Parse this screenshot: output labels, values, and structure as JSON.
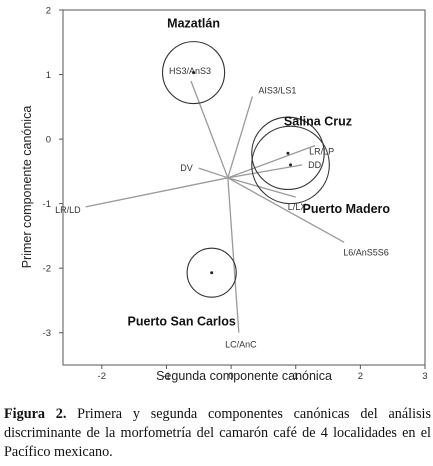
{
  "chart_data": {
    "type": "scatter",
    "title": "",
    "xlabel": "Segunda componente canónica",
    "ylabel": "Primer componente canónica",
    "xlim": [
      -2.6,
      3.0
    ],
    "ylim": [
      -3.5,
      2.0
    ],
    "x_ticks": [
      -2,
      -1,
      0,
      1,
      2,
      3
    ],
    "y_ticks": [
      -3,
      -2,
      -1,
      0,
      1,
      2
    ],
    "grid": false,
    "origin": [
      -0.05,
      -0.6
    ],
    "groups": [
      {
        "name": "Mazatlán",
        "center": [
          -0.58,
          1.03
        ],
        "radius": 0.48
      },
      {
        "name": "Salina Cruz",
        "center": [
          0.88,
          -0.22
        ],
        "radius": 0.56
      },
      {
        "name": "Puerto Madero",
        "center": [
          0.92,
          -0.4
        ],
        "radius": 0.6
      },
      {
        "name": "Puerto San Carlos",
        "center": [
          -0.3,
          -2.07
        ],
        "radius": 0.38
      }
    ],
    "vectors": [
      {
        "label": "HS3/AnS3",
        "end": [
          -0.62,
          0.9
        ]
      },
      {
        "label": "AIS3/LS1",
        "end": [
          0.33,
          0.66
        ]
      },
      {
        "label": "LR/LP",
        "end": [
          1.3,
          -0.1
        ]
      },
      {
        "label": "DD",
        "end": [
          1.1,
          -0.4
        ]
      },
      {
        "label": "L/LX",
        "end": [
          1.0,
          -0.9
        ]
      },
      {
        "label": "DV",
        "end": [
          -0.5,
          -0.45
        ]
      },
      {
        "label": "LR/LD",
        "end": [
          -2.25,
          -1.05
        ]
      },
      {
        "label": "L6/AnS5S6",
        "end": [
          1.75,
          -1.6
        ]
      },
      {
        "label": "LC/AnC",
        "end": [
          0.12,
          -3.0
        ]
      }
    ]
  },
  "caption": {
    "label": "Figura 2.",
    "text": " Primera y segunda componentes canónicas del análisis discriminante de la morfometría del camarón café de 4 localidades en el Pacífico mexicano."
  }
}
